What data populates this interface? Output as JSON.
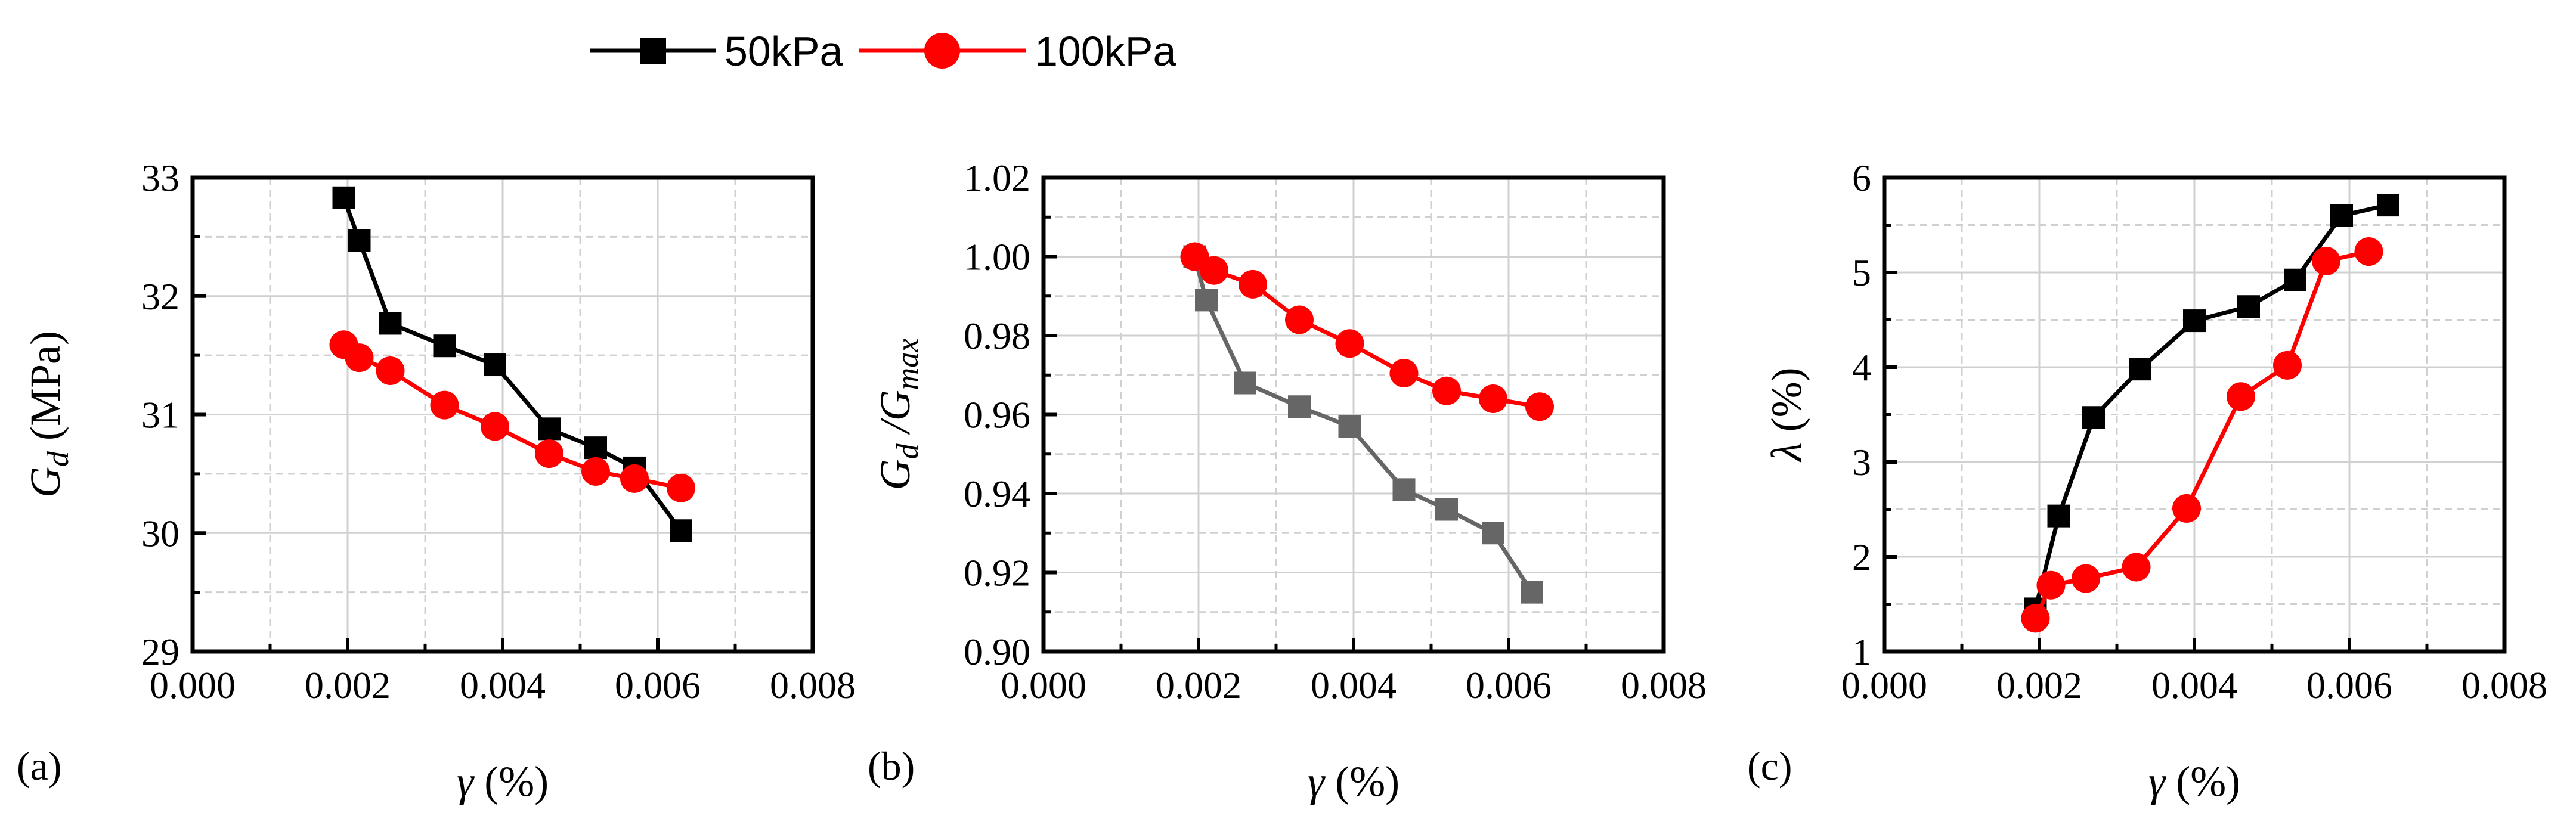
{
  "legend": {
    "entries": [
      {
        "label": "50kPa",
        "color": "#000000",
        "marker": "square"
      },
      {
        "label": "100kPa",
        "color": "#ff0000",
        "marker": "circle"
      }
    ]
  },
  "chart_data": [
    {
      "type": "line",
      "panel_label": "(a)",
      "xlabel_symbol": "γ",
      "xlabel_unit": " (%)",
      "ylabel_symbol": "G",
      "ylabel_sub": "d",
      "ylabel_unit": " (MPa)",
      "xlim": [
        0.0,
        0.008
      ],
      "ylim": [
        29,
        33
      ],
      "xticks": [
        0.0,
        0.002,
        0.004,
        0.006,
        0.008
      ],
      "xtick_labels": [
        "0.000",
        "0.002",
        "0.004",
        "0.006",
        "0.008"
      ],
      "yticks": [
        29,
        30,
        31,
        32,
        33
      ],
      "ytick_labels": [
        "29",
        "30",
        "31",
        "32",
        "33"
      ],
      "series": [
        {
          "name": "50kPa",
          "color": "#000000",
          "marker": "square",
          "x": [
            0.00195,
            0.00215,
            0.00255,
            0.00325,
            0.0039,
            0.0046,
            0.0052,
            0.0057,
            0.0063
          ],
          "y": [
            32.83,
            32.47,
            31.77,
            31.58,
            31.42,
            30.88,
            30.72,
            30.55,
            30.02
          ]
        },
        {
          "name": "100kPa",
          "color": "#ff0000",
          "marker": "circle",
          "x": [
            0.00195,
            0.00215,
            0.00255,
            0.00325,
            0.0039,
            0.0046,
            0.0052,
            0.0057,
            0.0063
          ],
          "y": [
            31.59,
            31.48,
            31.37,
            31.08,
            30.9,
            30.67,
            30.52,
            30.46,
            30.38
          ]
        }
      ]
    },
    {
      "type": "line",
      "panel_label": "(b)",
      "xlabel_symbol": "γ",
      "xlabel_unit": " (%)",
      "ylabel_symbol": "G",
      "ylabel_sub": "d",
      "ylabel_mid": " /G",
      "ylabel_sub2": "max",
      "xlim": [
        0.0,
        0.008
      ],
      "ylim": [
        0.9,
        1.02
      ],
      "xticks": [
        0.0,
        0.002,
        0.004,
        0.006,
        0.008
      ],
      "xtick_labels": [
        "0.000",
        "0.002",
        "0.004",
        "0.006",
        "0.008"
      ],
      "yticks": [
        0.9,
        0.92,
        0.94,
        0.96,
        0.98,
        1.0,
        1.02
      ],
      "ytick_labels": [
        "0.90",
        "0.92",
        "0.94",
        "0.96",
        "0.98",
        "1.00",
        "1.02"
      ],
      "series": [
        {
          "name": "50kPa",
          "color": "#666666",
          "marker": "square",
          "x": [
            0.00195,
            0.0021,
            0.0026,
            0.0033,
            0.00395,
            0.00465,
            0.0052,
            0.0058,
            0.0063
          ],
          "y": [
            1.0,
            0.989,
            0.968,
            0.962,
            0.957,
            0.941,
            0.936,
            0.93,
            0.915
          ]
        },
        {
          "name": "100kPa",
          "color": "#ff0000",
          "marker": "circle",
          "x": [
            0.00195,
            0.0022,
            0.0027,
            0.0033,
            0.00395,
            0.00465,
            0.0052,
            0.0058,
            0.0064
          ],
          "y": [
            1.0,
            0.9965,
            0.993,
            0.984,
            0.978,
            0.9705,
            0.966,
            0.964,
            0.962
          ]
        }
      ]
    },
    {
      "type": "line",
      "panel_label": "(c)",
      "xlabel_symbol": "γ",
      "xlabel_unit": " (%)",
      "ylabel_symbol": "λ",
      "ylabel_unit": " (%)",
      "xlim": [
        0.0,
        0.008
      ],
      "ylim": [
        1,
        6
      ],
      "xticks": [
        0.0,
        0.002,
        0.004,
        0.006,
        0.008
      ],
      "xtick_labels": [
        "0.000",
        "0.002",
        "0.004",
        "0.006",
        "0.008"
      ],
      "yticks": [
        1,
        2,
        3,
        4,
        5,
        6
      ],
      "ytick_labels": [
        "1",
        "2",
        "3",
        "4",
        "5",
        "6"
      ],
      "series": [
        {
          "name": "50kPa",
          "color": "#000000",
          "marker": "square",
          "x": [
            0.00195,
            0.00225,
            0.0027,
            0.0033,
            0.004,
            0.0047,
            0.0053,
            0.0059,
            0.0065
          ],
          "y": [
            1.45,
            2.43,
            3.47,
            3.98,
            4.49,
            4.64,
            4.92,
            5.6,
            5.71
          ]
        },
        {
          "name": "100kPa",
          "color": "#ff0000",
          "marker": "circle",
          "x": [
            0.00195,
            0.00215,
            0.0026,
            0.00325,
            0.0039,
            0.0046,
            0.0052,
            0.0057,
            0.00625
          ],
          "y": [
            1.35,
            1.7,
            1.77,
            1.89,
            2.51,
            3.69,
            4.02,
            5.12,
            5.22
          ]
        }
      ]
    }
  ]
}
